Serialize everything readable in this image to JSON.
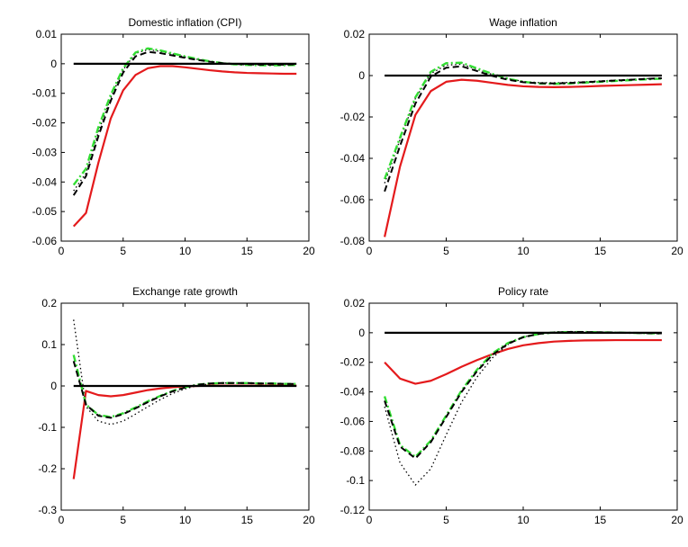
{
  "chart_data": [
    {
      "type": "line",
      "title": "Domestic inflation (CPI)",
      "xlim": [
        0,
        20
      ],
      "ylim": [
        -0.06,
        0.01
      ],
      "xticks": [
        0,
        5,
        10,
        15,
        20
      ],
      "yticks": [
        -0.06,
        -0.05,
        -0.04,
        -0.03,
        -0.02,
        -0.01,
        0,
        0.01
      ],
      "ytick_labels": [
        "-0.06",
        "-0.05",
        "-0.04",
        "-0.03",
        "-0.02",
        "-0.01",
        "0",
        "0.01"
      ],
      "x": [
        1,
        2,
        3,
        4,
        5,
        6,
        7,
        8,
        9,
        10,
        11,
        12,
        13,
        14,
        15,
        16,
        17,
        18,
        19
      ],
      "series": [
        {
          "style": "solid-red",
          "color": "#e41a1c",
          "values": [
            -0.055,
            -0.0505,
            -0.0335,
            -0.0185,
            -0.009,
            -0.0038,
            -0.0015,
            -0.0008,
            -0.0008,
            -0.0012,
            -0.0017,
            -0.0022,
            -0.0026,
            -0.0029,
            -0.0031,
            -0.0032,
            -0.0033,
            -0.0034,
            -0.0034
          ]
        },
        {
          "style": "dotted-black",
          "color": "#000000",
          "values": [
            -0.043,
            -0.037,
            -0.023,
            -0.0115,
            -0.002,
            0.0035,
            0.0048,
            0.0042,
            0.0033,
            0.0023,
            0.0015,
            0.0008,
            0.0003,
            0.0,
            -0.0002,
            -0.0003,
            -0.0003,
            -0.0003,
            -0.0002
          ]
        },
        {
          "style": "dashdot-green",
          "color": "#33dd33",
          "values": [
            -0.041,
            -0.0355,
            -0.0215,
            -0.0105,
            -0.0015,
            0.0038,
            0.0052,
            0.0045,
            0.0035,
            0.0025,
            0.0016,
            0.0008,
            0.0002,
            -0.0002,
            -0.0004,
            -0.0005,
            -0.0005,
            -0.0005,
            -0.0004
          ]
        },
        {
          "style": "dashed-black",
          "color": "#000000",
          "values": [
            -0.0445,
            -0.038,
            -0.0245,
            -0.0125,
            -0.003,
            0.0025,
            0.004,
            0.0036,
            0.0028,
            0.002,
            0.0013,
            0.0007,
            0.0002,
            -0.0001,
            -0.0002,
            -0.0003,
            -0.0003,
            -0.0003,
            -0.0002
          ]
        },
        {
          "style": "solid-black",
          "color": "#000000",
          "values": [
            0,
            0,
            0,
            0,
            0,
            0,
            0,
            0,
            0,
            0,
            0,
            0,
            0,
            0,
            0,
            0,
            0,
            0,
            0
          ]
        }
      ]
    },
    {
      "type": "line",
      "title": "Wage inflation",
      "xlim": [
        0,
        20
      ],
      "ylim": [
        -0.08,
        0.02
      ],
      "xticks": [
        0,
        5,
        10,
        15,
        20
      ],
      "yticks": [
        -0.08,
        -0.06,
        -0.04,
        -0.02,
        0,
        0.02
      ],
      "ytick_labels": [
        "-0.08",
        "-0.06",
        "-0.04",
        "-0.02",
        "0",
        "0.02"
      ],
      "x": [
        1,
        2,
        3,
        4,
        5,
        6,
        7,
        8,
        9,
        10,
        11,
        12,
        13,
        14,
        15,
        16,
        17,
        18,
        19
      ],
      "series": [
        {
          "style": "solid-red",
          "color": "#e41a1c",
          "values": [
            -0.078,
            -0.044,
            -0.019,
            -0.0075,
            -0.003,
            -0.002,
            -0.0025,
            -0.0035,
            -0.0045,
            -0.0052,
            -0.0055,
            -0.0056,
            -0.0055,
            -0.0053,
            -0.005,
            -0.0048,
            -0.0046,
            -0.0044,
            -0.0042
          ]
        },
        {
          "style": "dotted-black",
          "color": "#000000",
          "values": [
            -0.052,
            -0.031,
            -0.011,
            0.001,
            0.005,
            0.0055,
            0.003,
            0.0005,
            -0.0015,
            -0.0028,
            -0.0034,
            -0.0035,
            -0.0033,
            -0.003,
            -0.0026,
            -0.0022,
            -0.0018,
            -0.0015,
            -0.0012
          ]
        },
        {
          "style": "dashdot-green",
          "color": "#33dd33",
          "values": [
            -0.05,
            -0.03,
            -0.0105,
            0.0018,
            0.006,
            0.0062,
            0.0035,
            0.0008,
            -0.0015,
            -0.003,
            -0.0038,
            -0.004,
            -0.0038,
            -0.0034,
            -0.003,
            -0.0026,
            -0.0022,
            -0.0018,
            -0.0015
          ]
        },
        {
          "style": "dashed-black",
          "color": "#000000",
          "values": [
            -0.056,
            -0.034,
            -0.0135,
            -0.0005,
            0.0038,
            0.0045,
            0.0022,
            -0.0002,
            -0.002,
            -0.0032,
            -0.0037,
            -0.0038,
            -0.0036,
            -0.0032,
            -0.0028,
            -0.0024,
            -0.002,
            -0.0016,
            -0.0013
          ]
        },
        {
          "style": "solid-black",
          "color": "#000000",
          "values": [
            0,
            0,
            0,
            0,
            0,
            0,
            0,
            0,
            0,
            0,
            0,
            0,
            0,
            0,
            0,
            0,
            0,
            0,
            0
          ]
        }
      ]
    },
    {
      "type": "line",
      "title": "Exchange rate growth",
      "xlim": [
        0,
        20
      ],
      "ylim": [
        -0.3,
        0.2
      ],
      "xticks": [
        0,
        5,
        10,
        15,
        20
      ],
      "yticks": [
        -0.3,
        -0.2,
        -0.1,
        0,
        0.1,
        0.2
      ],
      "ytick_labels": [
        "-0.3",
        "-0.2",
        "-0.1",
        "0",
        "0.1",
        "0.2"
      ],
      "x": [
        1,
        2,
        3,
        4,
        5,
        6,
        7,
        8,
        9,
        10,
        11,
        12,
        13,
        14,
        15,
        16,
        17,
        18,
        19
      ],
      "series": [
        {
          "style": "solid-red",
          "color": "#e41a1c",
          "values": [
            -0.225,
            -0.012,
            -0.022,
            -0.025,
            -0.022,
            -0.016,
            -0.01,
            -0.006,
            -0.003,
            -0.001,
            0.0,
            0.001,
            0.001,
            0.001,
            0.001,
            0.001,
            0.001,
            0.001,
            0.001
          ]
        },
        {
          "style": "dotted-black",
          "color": "#000000",
          "values": [
            0.16,
            -0.05,
            -0.085,
            -0.093,
            -0.085,
            -0.068,
            -0.05,
            -0.033,
            -0.018,
            -0.007,
            0.001,
            0.005,
            0.007,
            0.007,
            0.007,
            0.006,
            0.005,
            0.005,
            0.004
          ]
        },
        {
          "style": "dashdot-green",
          "color": "#33dd33",
          "values": [
            0.075,
            -0.045,
            -0.07,
            -0.075,
            -0.066,
            -0.052,
            -0.037,
            -0.024,
            -0.012,
            -0.003,
            0.003,
            0.006,
            0.007,
            0.007,
            0.007,
            0.006,
            0.006,
            0.005,
            0.005
          ]
        },
        {
          "style": "dashed-black",
          "color": "#000000",
          "values": [
            0.06,
            -0.045,
            -0.072,
            -0.077,
            -0.068,
            -0.054,
            -0.039,
            -0.025,
            -0.013,
            -0.004,
            0.003,
            0.006,
            0.007,
            0.007,
            0.007,
            0.006,
            0.006,
            0.005,
            0.005
          ]
        },
        {
          "style": "solid-black",
          "color": "#000000",
          "values": [
            0,
            0,
            0,
            0,
            0,
            0,
            0,
            0,
            0,
            0,
            0,
            0,
            0,
            0,
            0,
            0,
            0,
            0,
            0
          ]
        }
      ]
    },
    {
      "type": "line",
      "title": "Policy rate",
      "xlim": [
        0,
        20
      ],
      "ylim": [
        -0.12,
        0.02
      ],
      "xticks": [
        0,
        5,
        10,
        15,
        20
      ],
      "yticks": [
        -0.12,
        -0.1,
        -0.08,
        -0.06,
        -0.04,
        -0.02,
        0,
        0.02
      ],
      "ytick_labels": [
        "-0.12",
        "-0.1",
        "-0.08",
        "-0.06",
        "-0.04",
        "-0.02",
        "0",
        "0.02"
      ],
      "x": [
        1,
        2,
        3,
        4,
        5,
        6,
        7,
        8,
        9,
        10,
        11,
        12,
        13,
        14,
        15,
        16,
        17,
        18,
        19
      ],
      "series": [
        {
          "style": "solid-red",
          "color": "#e41a1c",
          "values": [
            -0.02,
            -0.031,
            -0.0345,
            -0.0325,
            -0.028,
            -0.023,
            -0.0185,
            -0.0145,
            -0.011,
            -0.0085,
            -0.007,
            -0.006,
            -0.0055,
            -0.0052,
            -0.0051,
            -0.005,
            -0.005,
            -0.005,
            -0.005
          ]
        },
        {
          "style": "dotted-black",
          "color": "#000000",
          "values": [
            -0.05,
            -0.088,
            -0.103,
            -0.092,
            -0.069,
            -0.047,
            -0.03,
            -0.017,
            -0.008,
            -0.003,
            -0.0005,
            0.0005,
            0.0008,
            0.0007,
            0.0005,
            0.0003,
            0.0001,
            -0.0001,
            -0.0002
          ]
        },
        {
          "style": "dashdot-green",
          "color": "#33dd33",
          "values": [
            -0.043,
            -0.076,
            -0.084,
            -0.073,
            -0.056,
            -0.039,
            -0.025,
            -0.014,
            -0.007,
            -0.003,
            -0.0008,
            0.0002,
            0.0005,
            0.0005,
            0.0003,
            0.0001,
            -0.0001,
            -0.0003,
            -0.0005
          ]
        },
        {
          "style": "dashed-black",
          "color": "#000000",
          "values": [
            -0.046,
            -0.077,
            -0.085,
            -0.074,
            -0.057,
            -0.04,
            -0.026,
            -0.015,
            -0.0075,
            -0.003,
            -0.0008,
            0.0002,
            0.0005,
            0.0005,
            0.0003,
            0.0001,
            -0.0001,
            -0.0003,
            -0.0004
          ]
        },
        {
          "style": "solid-black",
          "color": "#000000",
          "values": [
            0,
            0,
            0,
            0,
            0,
            0,
            0,
            0,
            0,
            0,
            0,
            0,
            0,
            0,
            0,
            0,
            0,
            0,
            0
          ]
        }
      ]
    }
  ]
}
